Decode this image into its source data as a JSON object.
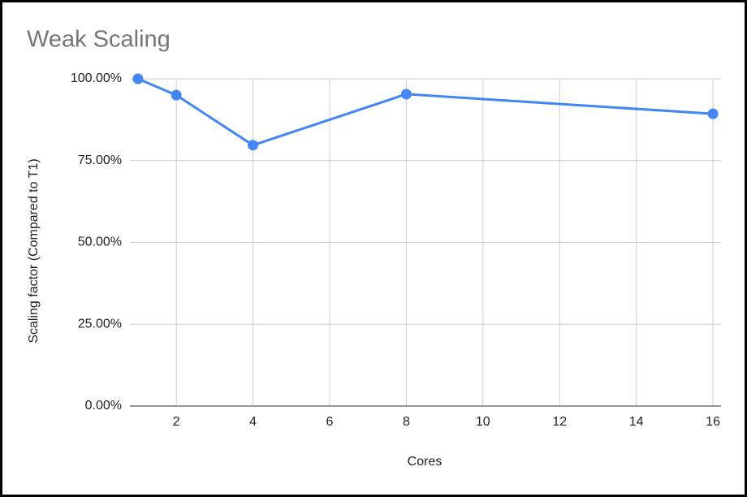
{
  "chart_data": {
    "type": "line",
    "title": "Weak Scaling",
    "x_label": "Cores",
    "y_label": "Scaling factor (Compared to T1)",
    "x": [
      1,
      2,
      4,
      8,
      16
    ],
    "series": [
      {
        "name": "Scaling factor",
        "color": "#4285f4",
        "values": [
          100,
          95,
          79.7,
          95.3,
          89.3
        ]
      }
    ],
    "xlim": [
      0.79,
      16.21
    ],
    "xticks": [
      2,
      4,
      6,
      8,
      10,
      12,
      14,
      16
    ],
    "ylim": [
      0,
      100
    ],
    "yticks": [
      {
        "value": 0,
        "label": "0.00%"
      },
      {
        "value": 25,
        "label": "25.00%"
      },
      {
        "value": 50,
        "label": "50.00%"
      },
      {
        "value": 75,
        "label": "75.00%"
      },
      {
        "value": 100,
        "label": "100.00%"
      }
    ],
    "grid": true
  }
}
